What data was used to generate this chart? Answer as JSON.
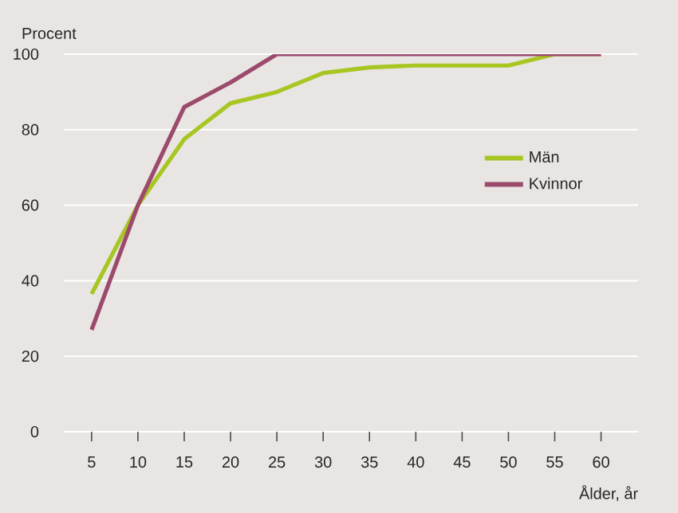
{
  "chart_data": {
    "type": "line",
    "ylabel": "Procent",
    "xlabel": "Ålder, år",
    "x": [
      5,
      10,
      15,
      20,
      25,
      30,
      35,
      40,
      45,
      50,
      55,
      60
    ],
    "series": [
      {
        "name": "Män",
        "color": "#a8c622",
        "values": [
          36.5,
          60,
          77.5,
          87,
          90,
          95,
          96.5,
          97,
          97,
          97,
          100,
          100
        ]
      },
      {
        "name": "Kvinnor",
        "color": "#9c4a6c",
        "values": [
          27,
          60,
          86,
          92.5,
          100,
          100,
          100,
          100,
          100,
          100,
          100,
          100
        ]
      }
    ],
    "xlim": [
      2,
      64
    ],
    "ylim": [
      0,
      100
    ],
    "xticks": [
      5,
      10,
      15,
      20,
      25,
      30,
      35,
      40,
      45,
      50,
      55,
      60
    ],
    "yticks": [
      0,
      20,
      40,
      60,
      80,
      100
    ],
    "grid": "y",
    "legend": "right",
    "marker": "none",
    "line_style": "solid"
  }
}
